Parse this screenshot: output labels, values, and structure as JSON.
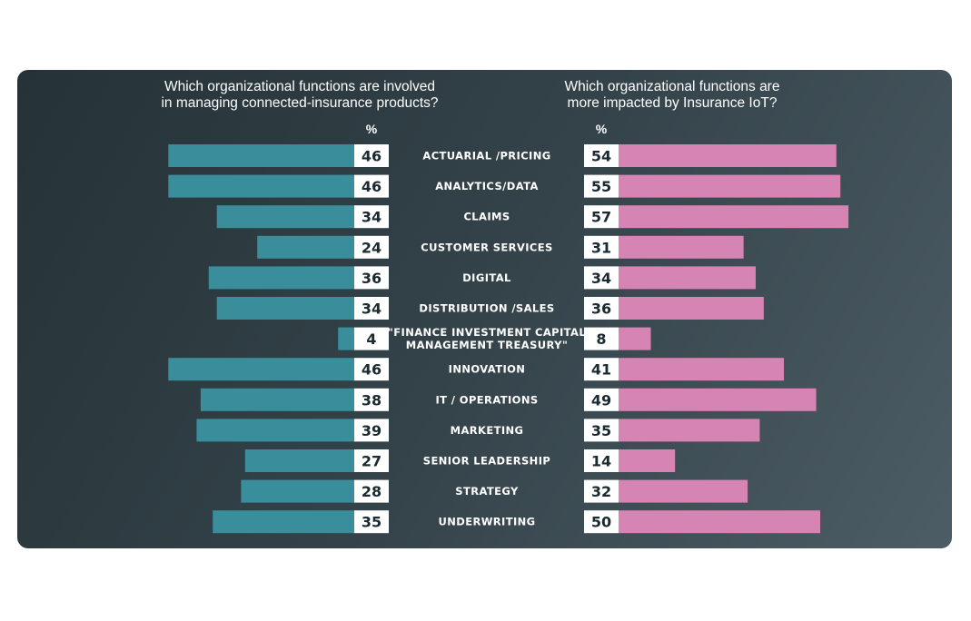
{
  "chart_data": {
    "type": "bar",
    "left_title": "Which organizational functions are involved\nin managing connected-insurance products?",
    "right_title": "Which organizational functions are\nmore impacted by Insurance IoT?",
    "left_unit": "%",
    "right_unit": "%",
    "categories": [
      "ACTUARIAL /PRICING",
      "ANALYTICS/DATA",
      "CLAIMS",
      "CUSTOMER SERVICES",
      "DIGITAL",
      "DISTRIBUTION /SALES",
      "\"FINANCE INVESTMENT CAPITAL MANAGEMENT TREASURY\"",
      "INNOVATION",
      "IT / OPERATIONS",
      "MARKETING",
      "SENIOR LEADERSHIP",
      "STRATEGY",
      "UNDERWRITING"
    ],
    "series": [
      {
        "values": [
          46,
          46,
          34,
          24,
          36,
          34,
          4,
          46,
          38,
          39,
          27,
          28,
          35
        ],
        "color": "#3a8e9b"
      },
      {
        "values": [
          54,
          55,
          57,
          31,
          34,
          36,
          8,
          41,
          49,
          35,
          14,
          32,
          50
        ],
        "color": "#d584b4"
      }
    ]
  }
}
